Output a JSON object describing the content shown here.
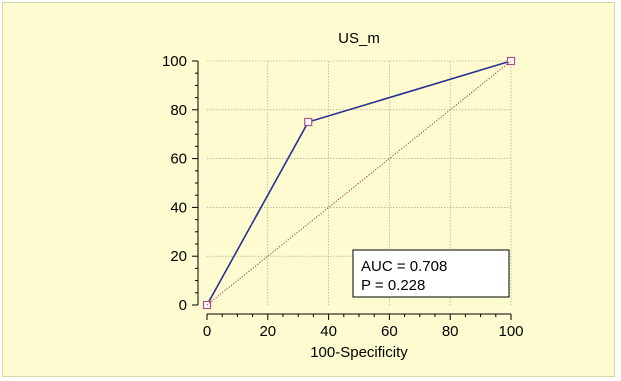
{
  "chart_data": {
    "type": "line",
    "title": "US_m",
    "xlabel": "100-Specificity",
    "ylabel": "",
    "xlim": [
      0,
      100
    ],
    "ylim": [
      0,
      100
    ],
    "xticks": [
      "0",
      "20",
      "40",
      "60",
      "80",
      "100"
    ],
    "yticks": [
      "0",
      "20",
      "40",
      "60",
      "80",
      "100"
    ],
    "grid": true,
    "series": [
      {
        "kind": "roc",
        "color": "#2b2f96",
        "points": [
          [
            0,
            0
          ],
          [
            33.3,
            75
          ],
          [
            100,
            100
          ]
        ]
      },
      {
        "kind": "reference-diagonal",
        "color": "#a23a3a",
        "points": [
          [
            0,
            0
          ],
          [
            100,
            100
          ]
        ]
      }
    ],
    "annotation": {
      "placement": "bottom-right",
      "lines": [
        "AUC = 0.708",
        "P = 0.228"
      ]
    },
    "colors": {
      "background": "#fdfbcf",
      "grid": "#9a9a7a",
      "marker_fill": "#ffffff",
      "marker_stroke": "#b0508f"
    }
  }
}
